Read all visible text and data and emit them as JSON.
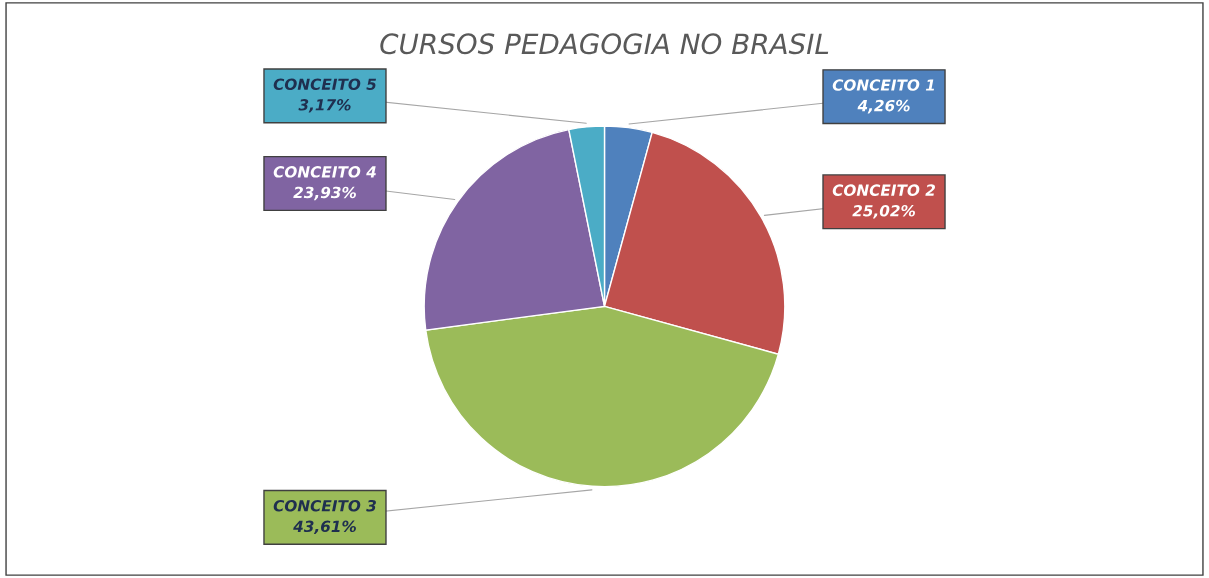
{
  "chart_data": {
    "type": "pie",
    "title": "CURSOS PEDAGOGIA NO BRASIL",
    "categories": [
      "CONCEITO 1",
      "CONCEITO 2",
      "CONCEITO 3",
      "CONCEITO 4",
      "CONCEITO 5"
    ],
    "values": [
      4.26,
      25.02,
      43.61,
      23.93,
      3.17
    ],
    "value_labels": [
      "4,26%",
      "25,02%",
      "43,61%",
      "23,93%",
      "3,17%"
    ],
    "colors": [
      "#4f81bd",
      "#c0504d",
      "#9bbb59",
      "#8064a2",
      "#4bacc6"
    ],
    "legend": false
  }
}
